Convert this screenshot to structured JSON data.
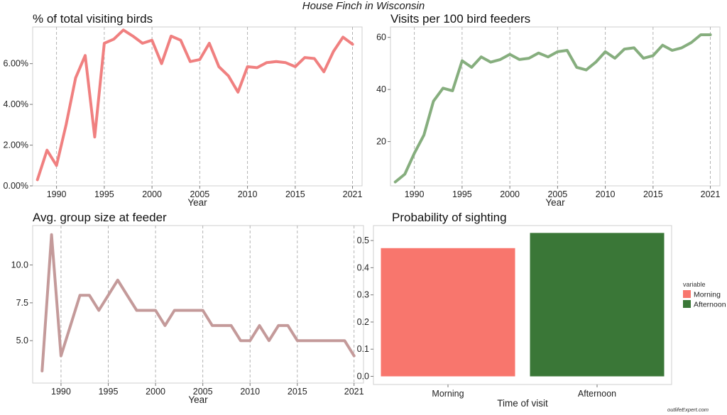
{
  "figure": {
    "title": "House Finch in Wisconsin",
    "watermark": "outlifeExpert.com"
  },
  "chart_data": [
    {
      "id": "pct",
      "type": "line",
      "title": "% of total visiting birds",
      "xlabel": "Year",
      "ylabel": "",
      "color": "#F08080",
      "xlim": [
        1987.5,
        2022
      ],
      "ylim": [
        0,
        7.8
      ],
      "x_ticks": [
        1990,
        1995,
        2000,
        2005,
        2010,
        2015,
        2021
      ],
      "x_tick_labels": [
        "1990",
        "1995",
        "2000",
        "2005",
        "2010",
        "2015",
        "2021"
      ],
      "y_ticks": [
        0,
        2,
        4,
        6
      ],
      "y_tick_labels": [
        "0.00%",
        "2.00%",
        "4.00%",
        "6.00%"
      ],
      "grid": "vertical-dashed",
      "x": [
        1988,
        1989,
        1990,
        1991,
        1992,
        1993,
        1994,
        1995,
        1996,
        1997,
        1998,
        1999,
        2000,
        2001,
        2002,
        2003,
        2004,
        2005,
        2006,
        2007,
        2008,
        2009,
        2010,
        2011,
        2012,
        2013,
        2014,
        2015,
        2016,
        2017,
        2018,
        2019,
        2020,
        2021
      ],
      "y": [
        0.3,
        1.75,
        1.0,
        3.0,
        5.3,
        6.4,
        2.4,
        7.0,
        7.2,
        7.65,
        7.35,
        7.0,
        7.15,
        6.0,
        7.35,
        7.15,
        6.1,
        6.2,
        7.0,
        5.85,
        5.4,
        4.6,
        5.85,
        5.8,
        6.05,
        6.1,
        6.05,
        5.85,
        6.3,
        6.25,
        5.6,
        6.6,
        7.3,
        6.95
      ]
    },
    {
      "id": "visits",
      "type": "line",
      "title": "Visits per 100 bird feeders",
      "xlabel": "Year",
      "ylabel": "",
      "color": "#86AE7E",
      "xlim": [
        1987.5,
        2022
      ],
      "ylim": [
        3,
        64
      ],
      "x_ticks": [
        1990,
        1995,
        2000,
        2005,
        2010,
        2015,
        2021
      ],
      "x_tick_labels": [
        "1990",
        "1995",
        "2000",
        "2005",
        "2010",
        "2015",
        "2021"
      ],
      "y_ticks": [
        20,
        40,
        60
      ],
      "y_tick_labels": [
        "20",
        "40",
        "60"
      ],
      "grid": "vertical-dashed",
      "x": [
        1988,
        1989,
        1990,
        1991,
        1992,
        1993,
        1994,
        1995,
        1996,
        1997,
        1998,
        1999,
        2000,
        2001,
        2002,
        2003,
        2004,
        2005,
        2006,
        2007,
        2008,
        2009,
        2010,
        2011,
        2012,
        2013,
        2014,
        2015,
        2016,
        2017,
        2018,
        2019,
        2020,
        2021
      ],
      "y": [
        4.5,
        7.5,
        15.5,
        22.5,
        35.5,
        40.5,
        39.5,
        51,
        48.5,
        52.5,
        50.5,
        51.5,
        53.5,
        51.5,
        52,
        54,
        52.5,
        54.5,
        55,
        48.5,
        47.5,
        50.5,
        54.5,
        52,
        55.5,
        56,
        52,
        53,
        57,
        55,
        56,
        58,
        61,
        61
      ]
    },
    {
      "id": "group",
      "type": "line",
      "title": "Avg. group size at feeder",
      "xlabel": "Year",
      "ylabel": "",
      "color": "#C49A9A",
      "xlim": [
        1987,
        2022
      ],
      "ylim": [
        2.2,
        12.6
      ],
      "x_ticks": [
        1990,
        1995,
        2000,
        2005,
        2010,
        2015,
        2021
      ],
      "x_tick_labels": [
        "1990",
        "1995",
        "2000",
        "2005",
        "2010",
        "2015",
        "2021"
      ],
      "y_ticks": [
        5,
        7.5,
        10
      ],
      "y_tick_labels": [
        "5.0",
        "7.5",
        "10.0"
      ],
      "grid": "vertical-dashed",
      "x": [
        1988,
        1989,
        1990,
        1991,
        1992,
        1993,
        1994,
        1995,
        1996,
        1997,
        1998,
        1999,
        2000,
        2001,
        2002,
        2003,
        2004,
        2005,
        2006,
        2007,
        2008,
        2009,
        2010,
        2011,
        2012,
        2013,
        2014,
        2015,
        2016,
        2017,
        2018,
        2019,
        2020,
        2021
      ],
      "y": [
        3,
        12,
        4,
        6,
        8,
        8,
        7,
        8,
        9,
        8,
        7,
        7,
        7,
        6,
        7,
        7,
        7,
        7,
        6,
        6,
        6,
        5,
        5,
        6,
        5,
        6,
        6,
        5,
        5,
        5,
        5,
        5,
        5,
        4
      ]
    },
    {
      "id": "prob",
      "type": "bar",
      "title": "Probability of sighting",
      "xlabel": "Time of visit",
      "ylabel": "",
      "categories": [
        "Morning",
        "Afternoon"
      ],
      "values": [
        0.472,
        0.528
      ],
      "colors": [
        "#F8766D",
        "#3A7737"
      ],
      "ylim": [
        -0.03,
        0.555
      ],
      "y_ticks": [
        0,
        0.1,
        0.2,
        0.3,
        0.4,
        0.5
      ],
      "y_tick_labels": [
        "0.0",
        "0.1",
        "0.2",
        "0.3",
        "0.4",
        "0.5"
      ],
      "grid": "none",
      "legend": {
        "title": "variable",
        "position": "right",
        "items": [
          {
            "label": "Morning",
            "color": "#F8766D"
          },
          {
            "label": "Afternoon",
            "color": "#3A7737"
          }
        ]
      }
    }
  ]
}
